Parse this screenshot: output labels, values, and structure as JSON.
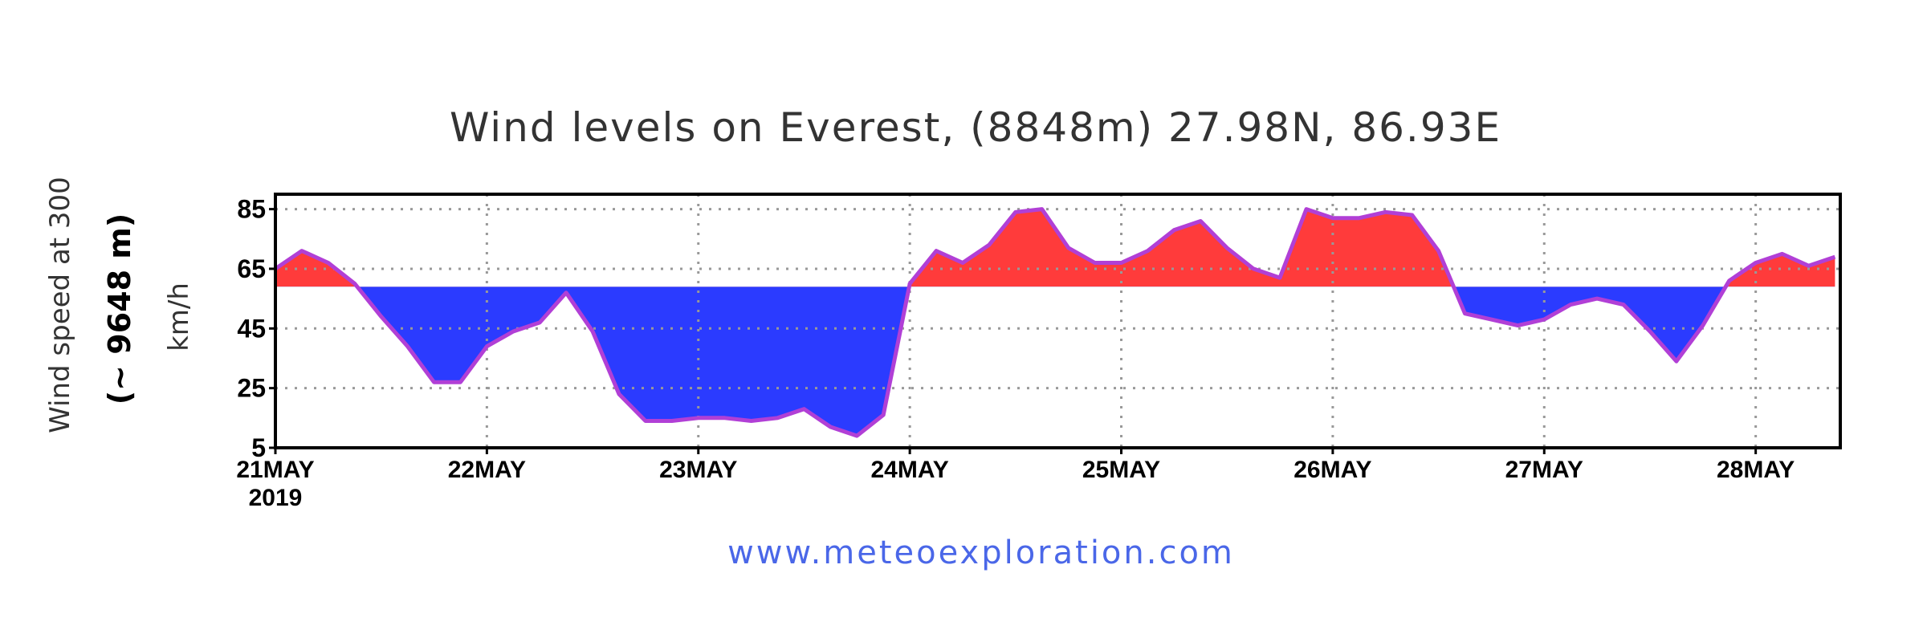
{
  "colors": {
    "above": "#ff3b3b",
    "below": "#2b3bff",
    "line": "#b13fd6",
    "grid": "#999999",
    "credit": "#4a67e8"
  },
  "credit_text": "www.meteoexploration.com",
  "chart_data": {
    "type": "area",
    "title": "Wind levels on Everest, (8848m) 27.98N, 86.93E",
    "ylabel_lines": [
      "Wind speed at 300",
      "(~ 9648 m)",
      "km/h"
    ],
    "xlabel": "",
    "ylim": [
      5,
      90
    ],
    "yticks": [
      5,
      25,
      45,
      65,
      85
    ],
    "xlim": [
      0,
      7.4
    ],
    "threshold": 59,
    "grid": true,
    "legend": "none",
    "x_ticks": [
      {
        "x": 0,
        "label": "21MAY",
        "sub": "2019"
      },
      {
        "x": 1,
        "label": "22MAY",
        "sub": ""
      },
      {
        "x": 2,
        "label": "23MAY",
        "sub": ""
      },
      {
        "x": 3,
        "label": "24MAY",
        "sub": ""
      },
      {
        "x": 4,
        "label": "25MAY",
        "sub": ""
      },
      {
        "x": 5,
        "label": "26MAY",
        "sub": ""
      },
      {
        "x": 6,
        "label": "27MAY",
        "sub": ""
      },
      {
        "x": 7,
        "label": "28MAY",
        "sub": ""
      }
    ],
    "series": [
      {
        "x": [
          0,
          0.125,
          0.25,
          0.375,
          0.5,
          0.625,
          0.75,
          0.875,
          1.0,
          1.125,
          1.25,
          1.375,
          1.5,
          1.625,
          1.75,
          1.875,
          2.0,
          2.125,
          2.25,
          2.375,
          2.5,
          2.625,
          2.75,
          2.875,
          3.0,
          3.125,
          3.25,
          3.375,
          3.5,
          3.625,
          3.75,
          3.875,
          4.0,
          4.125,
          4.25,
          4.375,
          4.5,
          4.625,
          4.75,
          4.875,
          5.0,
          5.125,
          5.25,
          5.375,
          5.5,
          5.625,
          5.75,
          5.875,
          6.0,
          6.125,
          6.25,
          6.375,
          6.5,
          6.625,
          6.75,
          6.875,
          7.0,
          7.125,
          7.25,
          7.375
        ],
        "values": [
          65,
          71,
          67,
          60,
          49,
          39,
          27,
          27,
          39,
          44,
          47,
          57,
          44,
          23,
          14,
          14,
          15,
          15,
          14,
          15,
          18,
          12,
          9,
          16,
          60,
          71,
          67,
          73,
          84,
          85,
          72,
          67,
          67,
          71,
          78,
          81,
          72,
          65,
          62,
          85,
          82,
          82,
          84,
          83,
          71,
          50,
          48,
          46,
          48,
          53,
          55,
          53,
          44,
          34,
          46,
          61,
          67,
          70,
          66,
          69
        ]
      }
    ]
  }
}
